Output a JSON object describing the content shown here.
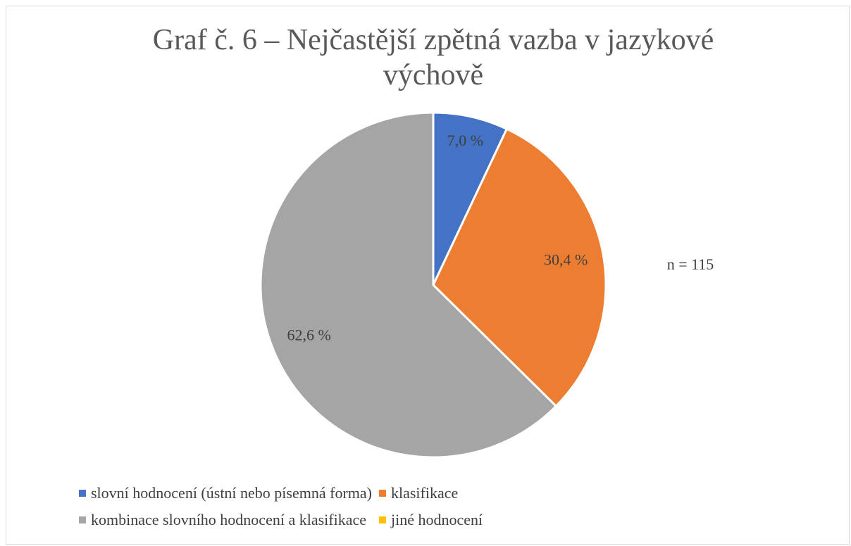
{
  "chart_data": {
    "type": "pie",
    "title": "Graf č. 6 – Nejčastější zpětná vazba v jazykové výchově",
    "categories": [
      "slovní hodnocení (ústní nebo písemná forma)",
      "klasifikace",
      "kombinace slovního hodnocení a klasifikace",
      "jiné hodnocení"
    ],
    "values": [
      7.0,
      30.4,
      62.6,
      0
    ],
    "value_labels": [
      "7,0 %",
      "30,4 %",
      "62,6 %",
      null
    ],
    "colors": [
      "#4472c4",
      "#ed7d31",
      "#a5a5a5",
      "#ffc000"
    ],
    "annotations": [
      "n = 115"
    ],
    "legend": "bottom"
  }
}
